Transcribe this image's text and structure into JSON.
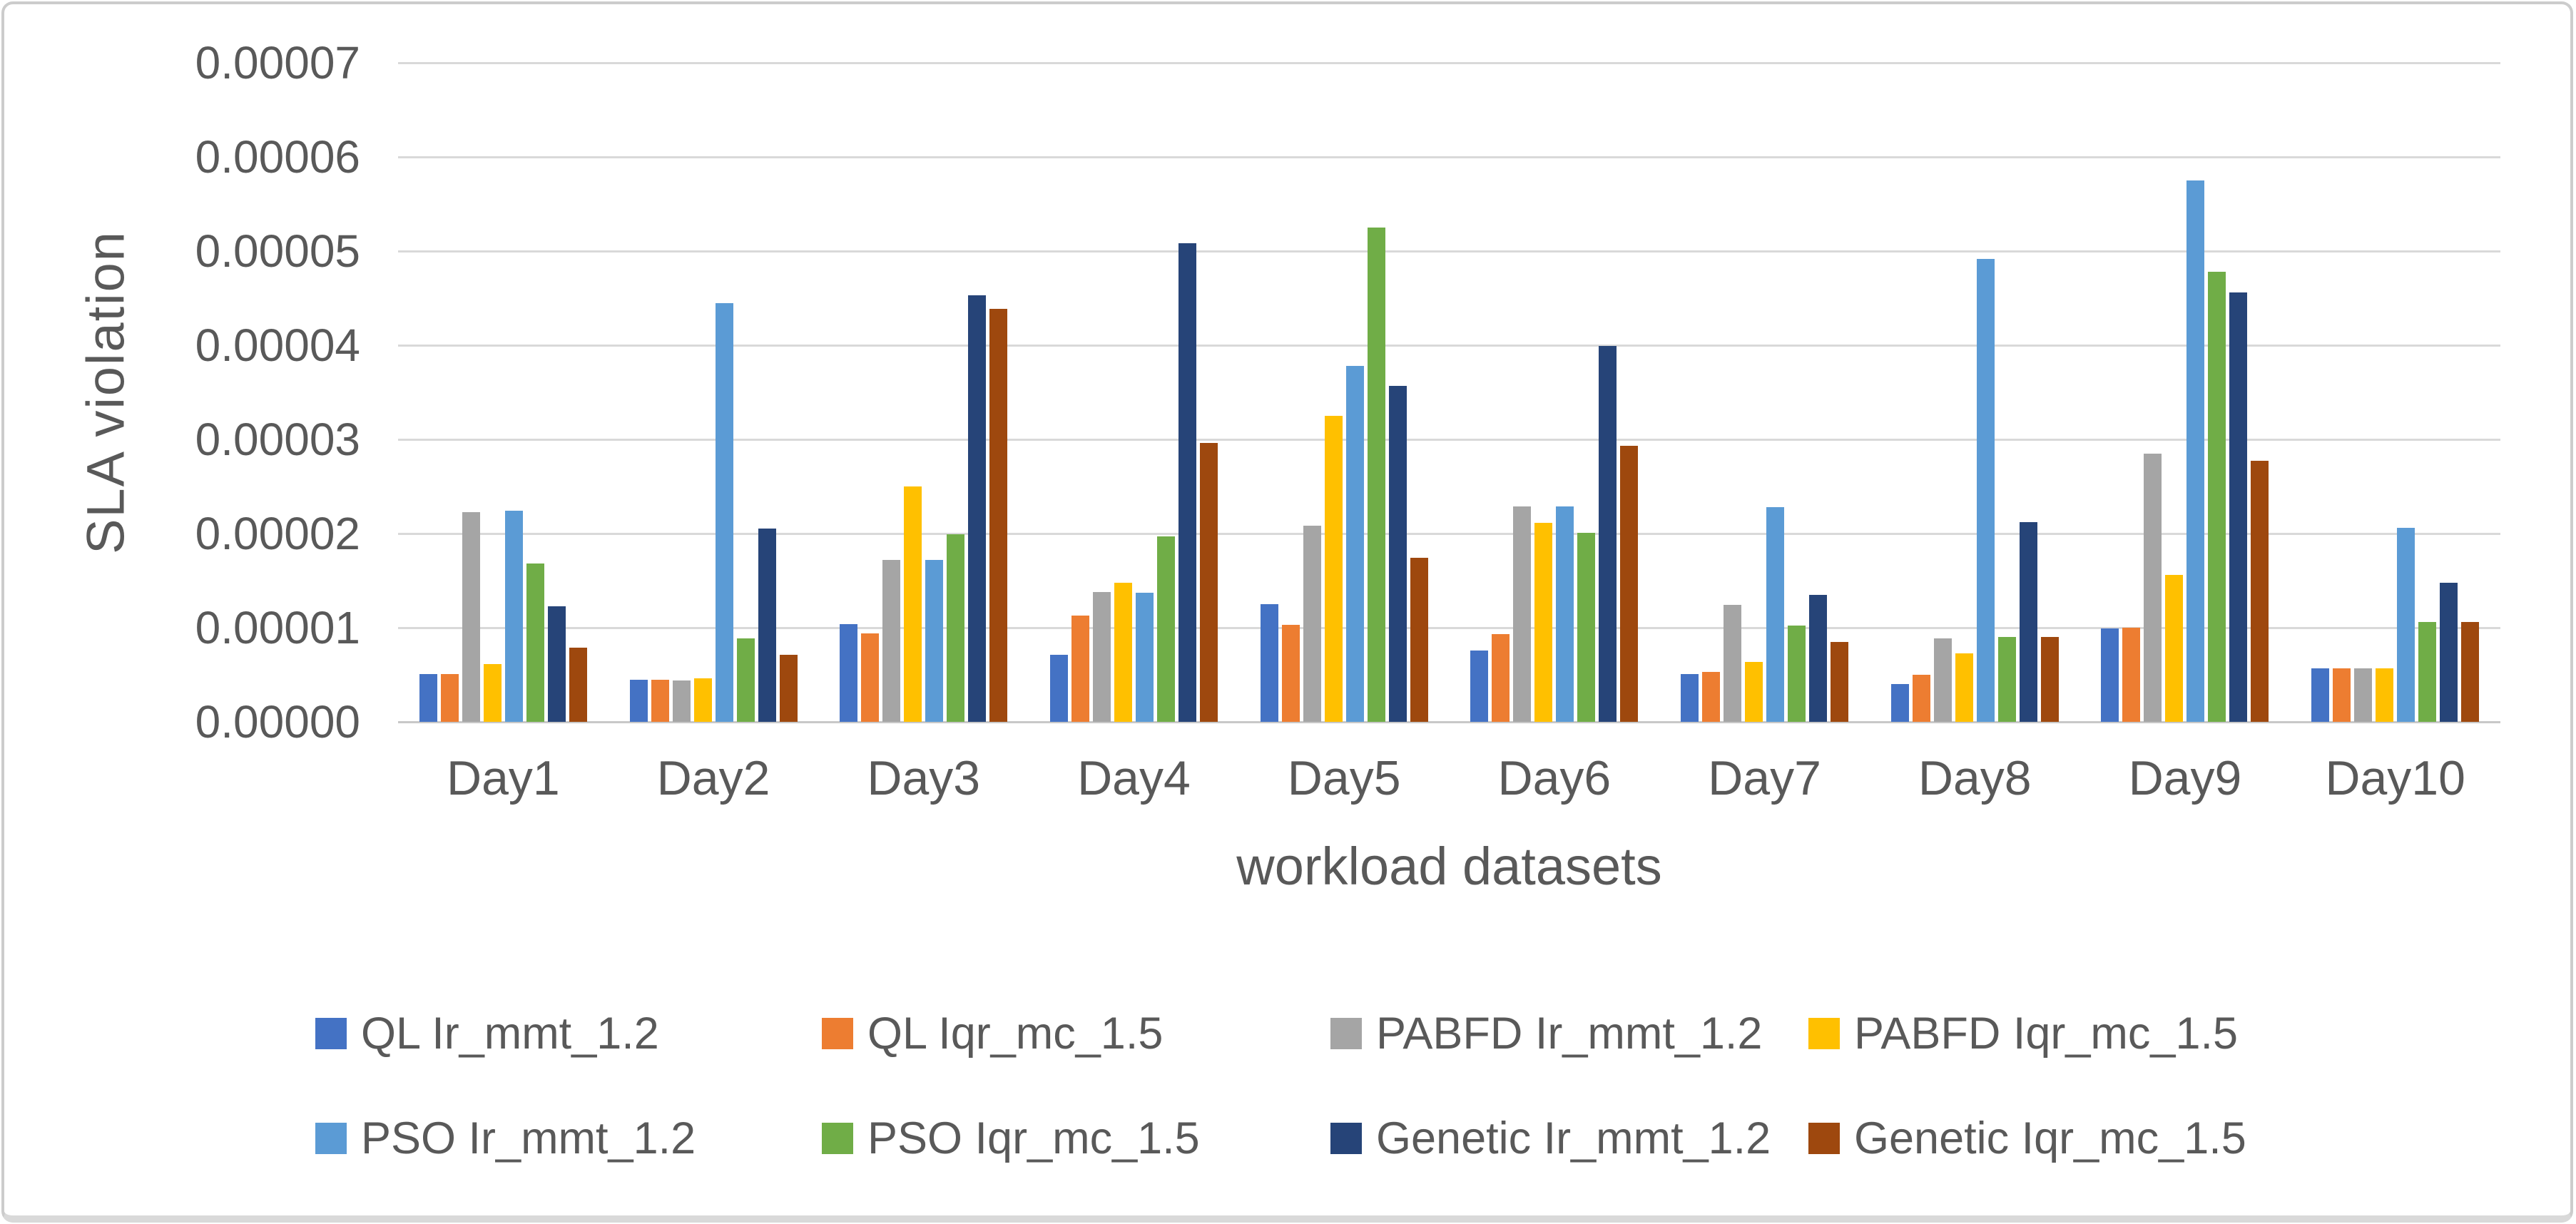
{
  "figure": {
    "y_axis": {
      "title": "SLA violation",
      "tick_labels": [
        "0.00000",
        "0.00001",
        "0.00002",
        "0.00003",
        "0.00004",
        "0.00005",
        "0.00006",
        "0.00007"
      ]
    },
    "x_axis": {
      "title": "workload datasets",
      "category_labels": [
        "Day1",
        "Day2",
        "Day3",
        "Day4",
        "Day5",
        "Day6",
        "Day7",
        "Day8",
        "Day9",
        "Day10"
      ]
    },
    "colors": {
      "grid": "#d9d9d9",
      "text": "#595959",
      "border": "#cccccc"
    }
  },
  "chart_data": {
    "type": "bar",
    "title": "",
    "xlabel": "workload datasets",
    "ylabel": "SLA violation",
    "ylim": [
      0,
      7e-05
    ],
    "ytick_interval": 1e-05,
    "grid": true,
    "legend_position": "bottom",
    "categories": [
      "Day1",
      "Day2",
      "Day3",
      "Day4",
      "Day5",
      "Day6",
      "Day7",
      "Day8",
      "Day9",
      "Day10"
    ],
    "series": [
      {
        "name": "QL Ir_mmt_1.2",
        "color": "#4472C4",
        "values": [
          5.1e-06,
          4.5e-06,
          1.04e-05,
          7.1e-06,
          1.25e-05,
          7.6e-06,
          5.1e-06,
          4e-06,
          9.9e-06,
          5.7e-06
        ]
      },
      {
        "name": "QL Iqr_mc_1.5",
        "color": "#ED7D31",
        "values": [
          5.1e-06,
          4.5e-06,
          9.4e-06,
          1.13e-05,
          1.03e-05,
          9.3e-06,
          5.3e-06,
          5e-06,
          1e-05,
          5.7e-06
        ]
      },
      {
        "name": "PABFD Ir_mmt_1.2",
        "color": "#A5A5A5",
        "values": [
          2.23e-05,
          4.4e-06,
          1.72e-05,
          1.38e-05,
          2.08e-05,
          2.29e-05,
          1.24e-05,
          8.9e-06,
          2.85e-05,
          5.7e-06
        ]
      },
      {
        "name": "PABFD Iqr_mc_1.5",
        "color": "#FFC000",
        "values": [
          6.1e-06,
          4.6e-06,
          2.5e-05,
          1.48e-05,
          3.25e-05,
          2.11e-05,
          6.4e-06,
          7.3e-06,
          1.56e-05,
          5.7e-06
        ]
      },
      {
        "name": "PSO Ir_mmt_1.2",
        "color": "#5B9BD5",
        "values": [
          2.24e-05,
          4.45e-05,
          1.72e-05,
          1.37e-05,
          3.78e-05,
          2.29e-05,
          2.28e-05,
          4.92e-05,
          5.75e-05,
          2.06e-05
        ]
      },
      {
        "name": "PSO Iqr_mc_1.5",
        "color": "#70AD47",
        "values": [
          1.68e-05,
          8.9e-06,
          1.99e-05,
          1.97e-05,
          5.25e-05,
          2.01e-05,
          1.02e-05,
          9e-06,
          4.78e-05,
          1.06e-05
        ]
      },
      {
        "name": "Genetic Ir_mmt_1.2",
        "color": "#264478",
        "values": [
          1.23e-05,
          2.05e-05,
          4.53e-05,
          5.08e-05,
          3.57e-05,
          3.99e-05,
          1.35e-05,
          2.12e-05,
          4.56e-05,
          1.48e-05
        ]
      },
      {
        "name": "Genetic Iqr_mc_1.5",
        "color": "#9E480E",
        "values": [
          7.9e-06,
          7.1e-06,
          4.39e-05,
          2.96e-05,
          1.74e-05,
          2.93e-05,
          8.5e-06,
          9e-06,
          2.77e-05,
          1.06e-05
        ]
      }
    ]
  }
}
